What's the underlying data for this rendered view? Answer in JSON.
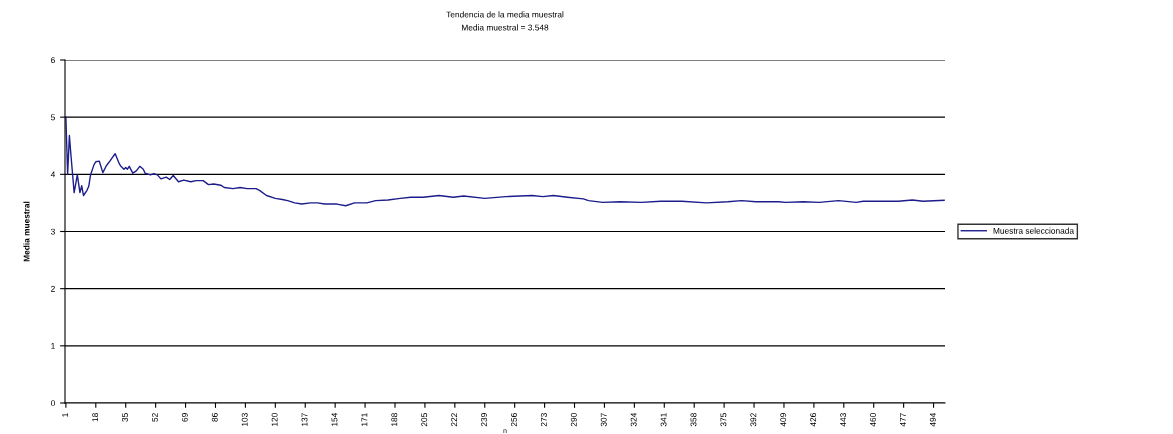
{
  "chart_data": {
    "type": "line",
    "title": "Tendencia de la media muestral",
    "subtitle": "Media muestral = 3.548",
    "xlabel": "n",
    "ylabel": "Media muestral",
    "series": [
      {
        "name": "Muestra seleccionada",
        "color": "#1c1c8c",
        "x": [
          1,
          2,
          3,
          4,
          5.7,
          7.5,
          9,
          10,
          11,
          13,
          14,
          15,
          17,
          18,
          20,
          22,
          24,
          26,
          28,
          29,
          31,
          32,
          34,
          35,
          36,
          37,
          39,
          41,
          43,
          45,
          46,
          49,
          51,
          53,
          55,
          58,
          60,
          62,
          65,
          68,
          72,
          75,
          79,
          82,
          85,
          89,
          91,
          96,
          100,
          104,
          109,
          111,
          115,
          120,
          124,
          127,
          131,
          135,
          140,
          144,
          148,
          155,
          160,
          165,
          172,
          177,
          184,
          191,
          197,
          204,
          213,
          221,
          227,
          239,
          251,
          266,
          272,
          278,
          286,
          295,
          298,
          306,
          316,
          328,
          339,
          351,
          365,
          377,
          385,
          393,
          406,
          410,
          420,
          429,
          440,
          450,
          454,
          474,
          482,
          488,
          500
        ],
        "values": [
          5.0,
          4.0,
          4.68,
          4.29,
          3.68,
          3.99,
          3.68,
          3.8,
          3.63,
          3.72,
          3.79,
          3.99,
          4.17,
          4.22,
          4.23,
          4.03,
          4.15,
          4.23,
          4.32,
          4.36,
          4.21,
          4.15,
          4.09,
          4.12,
          4.09,
          4.14,
          4.02,
          4.06,
          4.14,
          4.09,
          4.02,
          3.99,
          4.01,
          3.99,
          3.92,
          3.95,
          3.91,
          3.98,
          3.87,
          3.9,
          3.87,
          3.89,
          3.89,
          3.82,
          3.83,
          3.81,
          3.77,
          3.75,
          3.77,
          3.75,
          3.75,
          3.72,
          3.63,
          3.58,
          3.56,
          3.54,
          3.5,
          3.48,
          3.5,
          3.5,
          3.48,
          3.48,
          3.45,
          3.5,
          3.5,
          3.54,
          3.55,
          3.58,
          3.6,
          3.6,
          3.63,
          3.6,
          3.62,
          3.58,
          3.61,
          3.63,
          3.61,
          3.63,
          3.6,
          3.57,
          3.54,
          3.51,
          3.52,
          3.51,
          3.53,
          3.53,
          3.5,
          3.52,
          3.54,
          3.52,
          3.52,
          3.51,
          3.52,
          3.51,
          3.54,
          3.51,
          3.53,
          3.53,
          3.55,
          3.53,
          3.545
        ]
      }
    ],
    "xlim": [
      0.5,
      500.5
    ],
    "xticks": [
      1,
      18,
      35,
      52,
      69,
      86,
      103,
      120,
      137,
      154,
      171,
      188,
      205,
      222,
      239,
      256,
      273,
      290,
      307,
      324,
      341,
      358,
      375,
      392,
      409,
      426,
      443,
      460,
      477,
      494
    ],
    "ylim": [
      0,
      6
    ],
    "yticks": [
      0,
      1,
      2,
      3,
      4,
      5,
      6
    ],
    "grid": "y",
    "legend": "right",
    "marker": "none",
    "line_style": "solid"
  }
}
